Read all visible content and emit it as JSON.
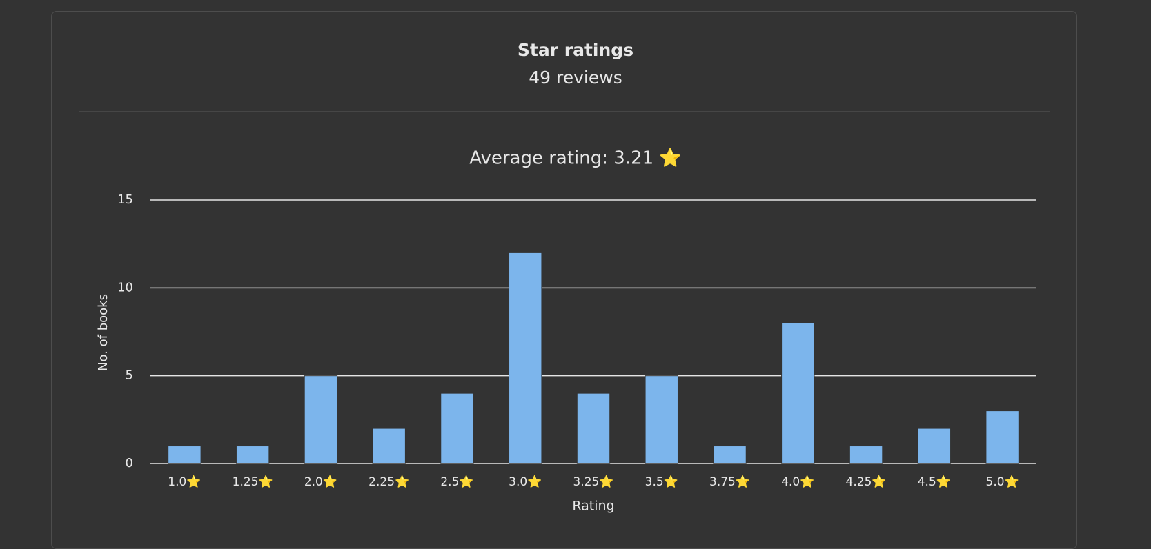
{
  "header": {
    "title": "Star ratings",
    "subtitle": "49 reviews"
  },
  "chart_data": {
    "type": "bar",
    "title": "Average rating: 3.21 ⭐",
    "categories": [
      "1.0⭐",
      "1.25⭐",
      "2.0⭐",
      "2.25⭐",
      "2.5⭐",
      "3.0⭐",
      "3.25⭐",
      "3.5⭐",
      "3.75⭐",
      "4.0⭐",
      "4.25⭐",
      "4.5⭐",
      "5.0⭐"
    ],
    "values": [
      1,
      1,
      5,
      2,
      4,
      12,
      4,
      5,
      1,
      8,
      1,
      2,
      3
    ],
    "color": "#7cb5ec",
    "x_label": "Rating",
    "y_label": "No. of books",
    "ylim": [
      0,
      15
    ],
    "yticks": [
      0,
      5,
      10,
      15
    ],
    "grid": true
  }
}
